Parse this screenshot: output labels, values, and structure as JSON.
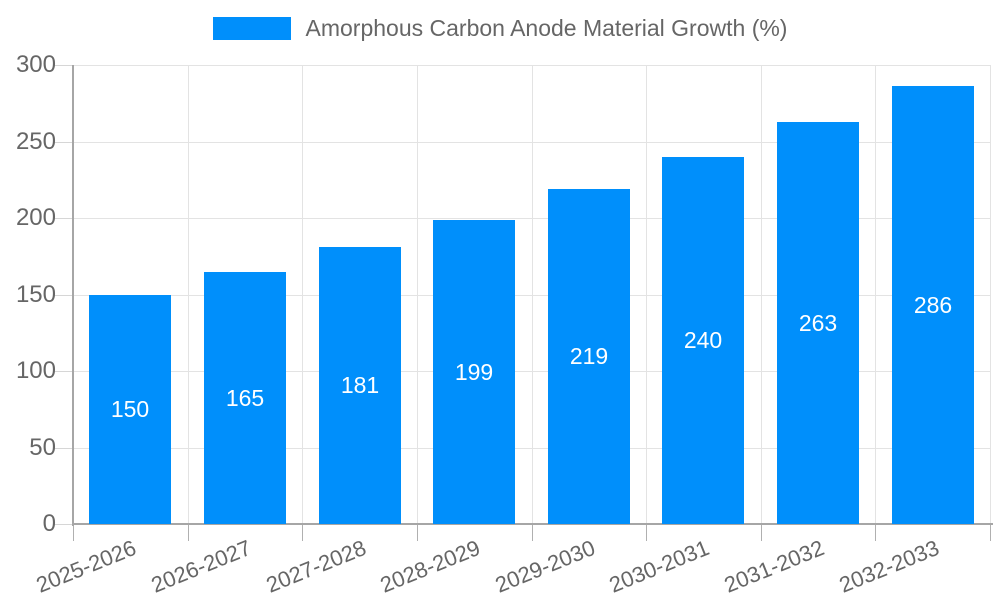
{
  "legend": {
    "label": "Amorphous Carbon Anode Material Growth (%)"
  },
  "chart_data": {
    "type": "bar",
    "title": "Amorphous Carbon Anode Material Growth (%)",
    "categories": [
      "2025-2026",
      "2026-2027",
      "2027-2028",
      "2028-2029",
      "2029-2030",
      "2030-2031",
      "2031-2032",
      "2032-2033"
    ],
    "series": [
      {
        "name": "Amorphous Carbon Anode Material Growth (%)",
        "values": [
          150,
          165,
          181,
          199,
          219,
          240,
          263,
          286
        ]
      }
    ],
    "xlabel": "",
    "ylabel": "",
    "ylim": [
      0,
      300
    ],
    "yticks": [
      0,
      50,
      100,
      150,
      200,
      250,
      300
    ],
    "grid": true,
    "legend_position": "top",
    "value_label_position": "inside-middle",
    "x_label_rotation_deg": -22,
    "colors": {
      "bar": "#008FFB",
      "text": "#666666",
      "value_text": "#ffffff",
      "grid": "#e3e3e3",
      "axis": "#a6a6a6",
      "ytick": "#d6d6d6",
      "xtick": "#b0b0b0"
    }
  }
}
